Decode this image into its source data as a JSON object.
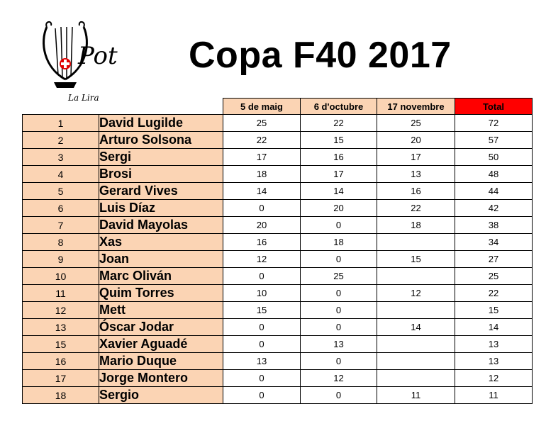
{
  "logo": {
    "text": "La Lira",
    "mark": "Pot"
  },
  "title": "Copa F40 2017",
  "table": {
    "headers": [
      "5 de maig",
      "6 d'octubre",
      "17 novembre",
      "Total"
    ],
    "rows": [
      {
        "rank": "1",
        "name": "David Lugilde",
        "s1": "25",
        "s2": "22",
        "s3": "25",
        "total": "72"
      },
      {
        "rank": "2",
        "name": "Arturo Solsona",
        "s1": "22",
        "s2": "15",
        "s3": "20",
        "total": "57"
      },
      {
        "rank": "3",
        "name": "Sergi",
        "s1": "17",
        "s2": "16",
        "s3": "17",
        "total": "50"
      },
      {
        "rank": "4",
        "name": "Brosi",
        "s1": "18",
        "s2": "17",
        "s3": "13",
        "total": "48"
      },
      {
        "rank": "5",
        "name": "Gerard Vives",
        "s1": "14",
        "s2": "14",
        "s3": "16",
        "total": "44"
      },
      {
        "rank": "6",
        "name": "Luis Díaz",
        "s1": "0",
        "s2": "20",
        "s3": "22",
        "total": "42"
      },
      {
        "rank": "7",
        "name": "David Mayolas",
        "s1": "20",
        "s2": "0",
        "s3": "18",
        "total": "38"
      },
      {
        "rank": "8",
        "name": "Xas",
        "s1": "16",
        "s2": "18",
        "s3": "",
        "total": "34"
      },
      {
        "rank": "9",
        "name": "Joan",
        "s1": "12",
        "s2": "0",
        "s3": "15",
        "total": "27"
      },
      {
        "rank": "10",
        "name": "Marc Oliván",
        "s1": "0",
        "s2": "25",
        "s3": "",
        "total": "25"
      },
      {
        "rank": "11",
        "name": "Quim Torres",
        "s1": "10",
        "s2": "0",
        "s3": "12",
        "total": "22"
      },
      {
        "rank": "12",
        "name": "Mett",
        "s1": "15",
        "s2": "0",
        "s3": "",
        "total": "15"
      },
      {
        "rank": "13",
        "name": "Óscar Jodar",
        "s1": "0",
        "s2": "0",
        "s3": "14",
        "total": "14"
      },
      {
        "rank": "15",
        "name": "Xavier Aguadé",
        "s1": "0",
        "s2": "13",
        "s3": "",
        "total": "13"
      },
      {
        "rank": "16",
        "name": "Mario Duque",
        "s1": "13",
        "s2": "0",
        "s3": "",
        "total": "13"
      },
      {
        "rank": "17",
        "name": "Jorge Montero",
        "s1": "0",
        "s2": "12",
        "s3": "",
        "total": "12"
      },
      {
        "rank": "18",
        "name": "Sergio",
        "s1": "0",
        "s2": "0",
        "s3": "11",
        "total": "11"
      }
    ]
  }
}
